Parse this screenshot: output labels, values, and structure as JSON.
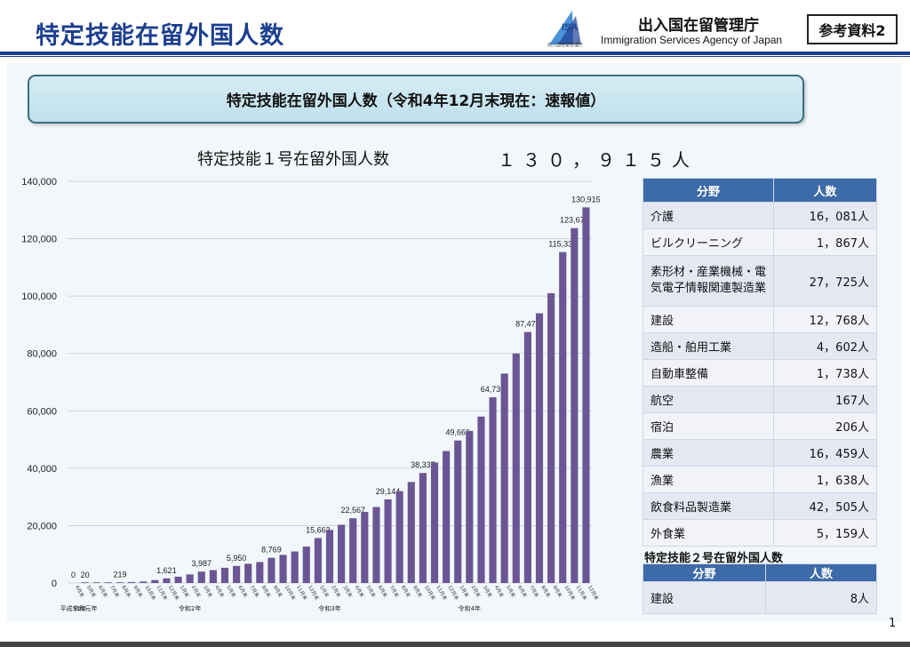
{
  "header": {
    "title": "特定技能在留外国人数",
    "agency_name_ja": "出入国在留管理庁",
    "agency_name_en": "Immigration Services Agency of Japan",
    "logo_text": "ISA",
    "logo_small": "出入国在留管理庁",
    "reference_label": "参考資料2"
  },
  "banner": "特定技能在留外国人数（令和4年12月末現在：速報値）",
  "chart_title": "特定技能１号在留外国人数",
  "chart_total": "１３０，９１５人",
  "chart_data": {
    "type": "bar",
    "categories": [
      "4月末",
      "5月末",
      "6月末",
      "7月末",
      "8月末",
      "9月末",
      "10月末",
      "11月末",
      "12月末",
      "1月末",
      "2月末",
      "3月末",
      "4月末",
      "5月末",
      "6月末",
      "7月末",
      "8月末",
      "9月末",
      "10月末",
      "11月末",
      "12月末",
      "1月末",
      "2月末",
      "3月末",
      "4月末",
      "5月末",
      "6月末",
      "7月末",
      "8月末",
      "9月末",
      "10月末",
      "11月末",
      "12月末",
      "1月末",
      "2月末",
      "3月末",
      "4月末",
      "5月末",
      "6月末",
      "7月末",
      "8月末",
      "9月末",
      "10月末",
      "11月末",
      "12月末"
    ],
    "values": [
      0,
      20,
      50,
      150,
      219,
      350,
      520,
      1019,
      1621,
      2200,
      2994,
      3987,
      4500,
      5300,
      5950,
      6700,
      7300,
      8769,
      9800,
      11000,
      12700,
      15663,
      18500,
      20300,
      22567,
      24800,
      26500,
      29144,
      32000,
      35200,
      38337,
      42000,
      46000,
      49666,
      53000,
      58000,
      64730,
      73000,
      80000,
      87471,
      94000,
      101000,
      115338,
      123679,
      130915
    ],
    "data_labels": {
      "0": "0",
      "1": "20",
      "4": "219",
      "8": "1,621",
      "11": "3,987",
      "14": "5,950",
      "17": "8,769",
      "21": "15,663",
      "24": "22,567",
      "27": "29,144",
      "30": "38,337",
      "33": "49,666",
      "36": "64,730",
      "39": "87,471",
      "42": "115,338",
      "43": "123,679",
      "44": "130,915"
    },
    "era_labels": [
      {
        "index": 0,
        "text": "平成31年"
      },
      {
        "index": 1,
        "text": "令和元年"
      },
      {
        "index": 10,
        "text": "令和2年"
      },
      {
        "index": 22,
        "text": "令和3年"
      },
      {
        "index": 34,
        "text": "令和4年"
      }
    ],
    "ylim": [
      0,
      140000
    ],
    "yticks": [
      "0",
      "20,000",
      "40,000",
      "60,000",
      "80,000",
      "100,000",
      "120,000",
      "140,000"
    ],
    "bar_color": "#6b5594",
    "grid": true
  },
  "table1": {
    "headers": [
      "分野",
      "人数"
    ],
    "rows": [
      {
        "field": "介護",
        "count": "16，081人"
      },
      {
        "field": "ビルクリーニング",
        "count": "1，867人"
      },
      {
        "field": "素形材・産業機械・電気電子情報関連製造業",
        "count": "27，725人"
      },
      {
        "field": "建設",
        "count": "12，768人"
      },
      {
        "field": "造船・舶用工業",
        "count": "4，602人"
      },
      {
        "field": "自動車整備",
        "count": "1，738人"
      },
      {
        "field": "航空",
        "count": "167人"
      },
      {
        "field": "宿泊",
        "count": "206人"
      },
      {
        "field": "農業",
        "count": "16，459人"
      },
      {
        "field": "漁業",
        "count": "1，638人"
      },
      {
        "field": "飲食料品製造業",
        "count": "42，505人"
      },
      {
        "field": "外食業",
        "count": "5，159人"
      }
    ]
  },
  "table2": {
    "title": "特定技能２号在留外国人数",
    "headers": [
      "分野",
      "人数"
    ],
    "rows": [
      {
        "field": "建設",
        "count": "8人"
      }
    ]
  },
  "page_number": "1"
}
